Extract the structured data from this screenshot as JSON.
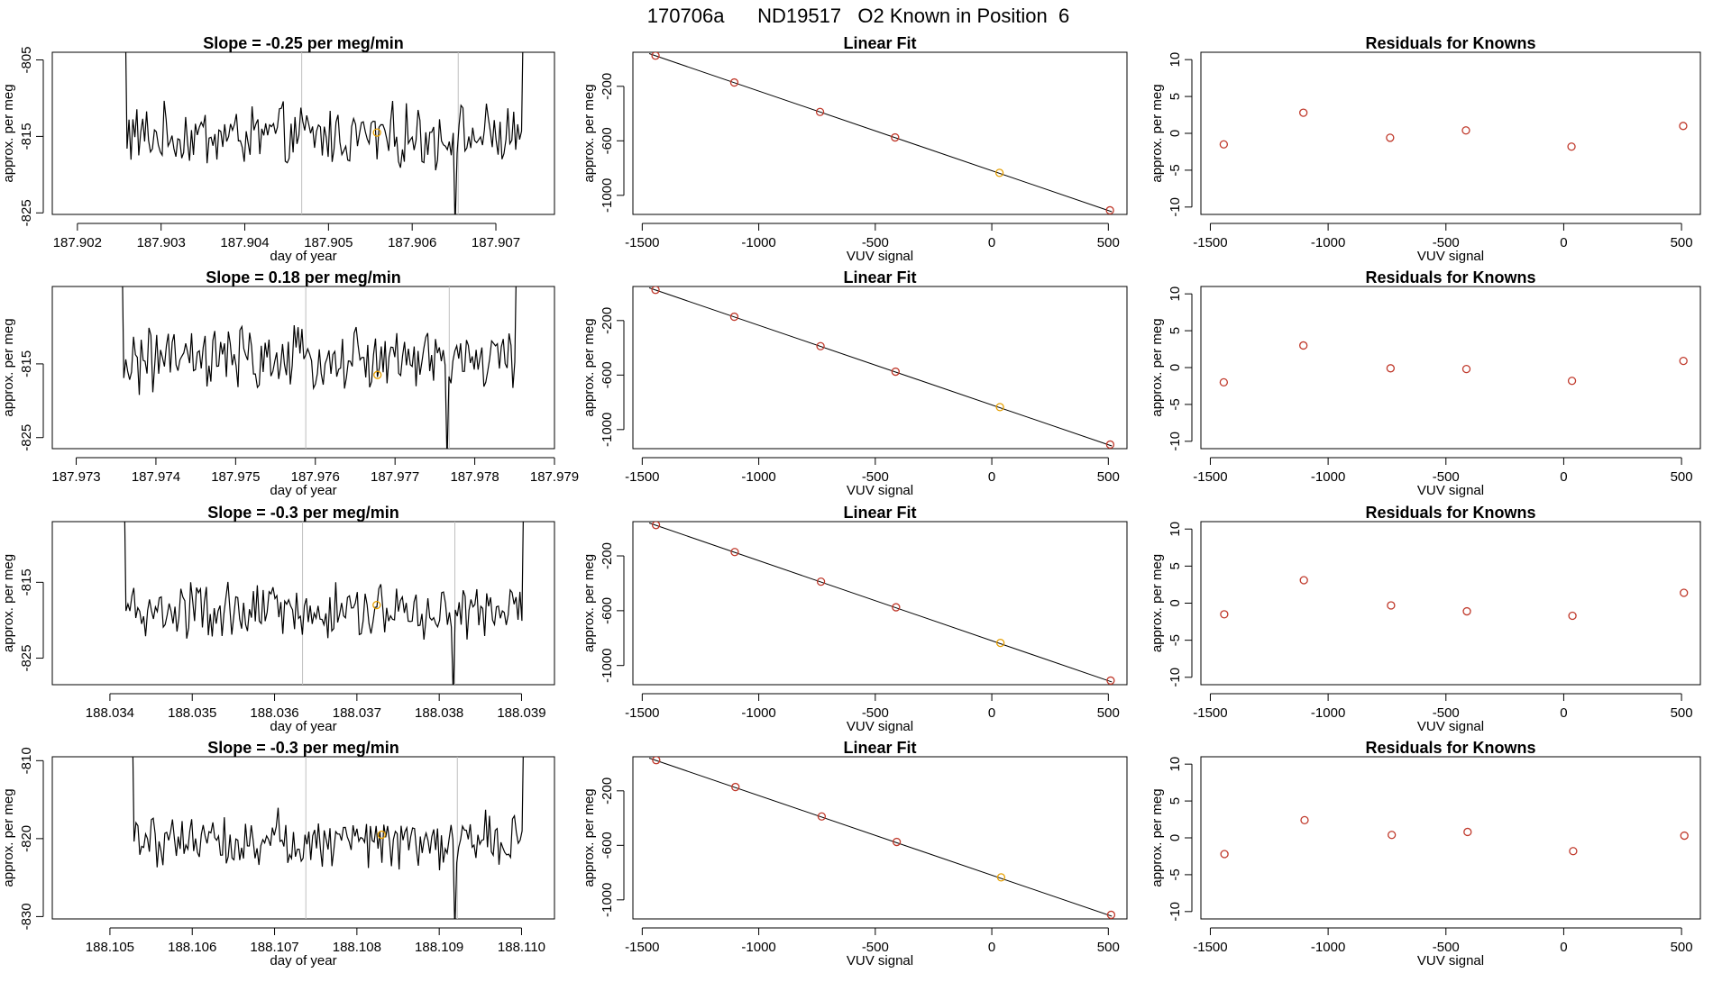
{
  "figure_title": "170706a      ND19517   O2 Known in Position  6",
  "colors": {
    "line": "#000000",
    "points": "#c0392b",
    "highlight": "#e69f00",
    "vlines": "#bfbfbf"
  },
  "chart_data": [
    {
      "type": "line",
      "row": 0,
      "col": 0,
      "title": "Slope =  -0.25  per meg/min",
      "xlabel": "day of year",
      "ylabel": "approx. per meg",
      "xlim": [
        187.9017,
        187.9077
      ],
      "ylim": [
        -825.2,
        -804.0
      ],
      "xticks": [
        187.902,
        187.903,
        187.904,
        187.905,
        187.906,
        187.907
      ],
      "xtick_labels": [
        "187.902",
        "187.903",
        "187.904",
        "187.905",
        "187.906",
        "187.907"
      ],
      "yticks": [
        -825,
        -815,
        -805
      ],
      "ytick_labels": [
        "-825",
        "-815",
        "-805"
      ],
      "series_range": [
        187.9025,
        187.9074
      ],
      "baseline": -815,
      "noise": 3.2,
      "vlines": [
        187.90468,
        187.90655
      ],
      "highlight_point": {
        "x": 187.90558,
        "y": -814.5
      }
    },
    {
      "type": "line",
      "row": 0,
      "col": 1,
      "title": "Linear Fit",
      "xlabel": "VUV signal",
      "ylabel": "approx. per meg",
      "xlim": [
        -1540,
        580
      ],
      "ylim": [
        -1140,
        50
      ],
      "xticks": [
        -1500,
        -1000,
        -500,
        0,
        500
      ],
      "xtick_labels": [
        "-1500",
        "-1000",
        "-500",
        "0",
        "500"
      ],
      "yticks": [
        -1000,
        -600,
        -200
      ],
      "ytick_labels": [
        "-1000",
        "-600",
        "-200"
      ],
      "line": [
        [
          -1470,
          40
        ],
        [
          515,
          -1120
        ]
      ],
      "points": [
        [
          -1443,
          25
        ],
        [
          -1105,
          -172
        ],
        [
          -737,
          -388
        ],
        [
          -415,
          -575
        ],
        [
          33,
          -835
        ],
        [
          507,
          -1110
        ]
      ],
      "highlight_index": 4
    },
    {
      "type": "scatter",
      "row": 0,
      "col": 2,
      "title": "Residuals for Knowns",
      "xlabel": "VUV signal",
      "ylabel": "approx. per meg",
      "xlim": [
        -1540,
        580
      ],
      "ylim": [
        -11,
        11
      ],
      "xticks": [
        -1500,
        -1000,
        -500,
        0,
        500
      ],
      "xtick_labels": [
        "-1500",
        "-1000",
        "-500",
        "0",
        "500"
      ],
      "yticks": [
        -10,
        -5,
        0,
        5,
        10
      ],
      "ytick_labels": [
        "-10",
        "-5",
        "0",
        "5",
        "10"
      ],
      "points": [
        [
          -1443,
          -1.5
        ],
        [
          -1105,
          2.8
        ],
        [
          -737,
          -0.6
        ],
        [
          -415,
          0.4
        ],
        [
          33,
          -1.8
        ],
        [
          507,
          1.0
        ]
      ]
    },
    {
      "type": "line",
      "row": 1,
      "col": 0,
      "title": "Slope =  0.18  per meg/min",
      "xlabel": "day of year",
      "ylabel": "approx. per meg",
      "xlim": [
        187.9727,
        187.979
      ],
      "ylim": [
        -826.5,
        -804.5
      ],
      "xticks": [
        187.973,
        187.974,
        187.975,
        187.976,
        187.977,
        187.978,
        187.979
      ],
      "xtick_labels": [
        "187.973",
        "187.974",
        "187.975",
        "187.976",
        "187.977",
        "187.978",
        "187.979"
      ],
      "yticks": [
        -825,
        -815
      ],
      "ytick_labels": [
        "-825",
        "-815"
      ],
      "series_range": [
        187.9735,
        187.9786
      ],
      "baseline": -814.5,
      "noise": 3.4,
      "vlines": [
        187.97588,
        187.97768
      ],
      "highlight_point": {
        "x": 187.97678,
        "y": -816.5
      }
    },
    {
      "type": "line",
      "row": 1,
      "col": 1,
      "title": "Linear Fit",
      "xlabel": "VUV signal",
      "ylabel": "approx. per meg",
      "xlim": [
        -1540,
        580
      ],
      "ylim": [
        -1140,
        50
      ],
      "xticks": [
        -1500,
        -1000,
        -500,
        0,
        500
      ],
      "xtick_labels": [
        "-1500",
        "-1000",
        "-500",
        "0",
        "500"
      ],
      "yticks": [
        -1000,
        -600,
        -200
      ],
      "ytick_labels": [
        "-1000",
        "-600",
        "-200"
      ],
      "line": [
        [
          -1470,
          40
        ],
        [
          515,
          -1120
        ]
      ],
      "points": [
        [
          -1443,
          25
        ],
        [
          -1105,
          -172
        ],
        [
          -735,
          -388
        ],
        [
          -413,
          -575
        ],
        [
          35,
          -835
        ],
        [
          508,
          -1110
        ]
      ],
      "highlight_index": 4
    },
    {
      "type": "scatter",
      "row": 1,
      "col": 2,
      "title": "Residuals for Knowns",
      "xlabel": "VUV signal",
      "ylabel": "approx. per meg",
      "xlim": [
        -1540,
        580
      ],
      "ylim": [
        -11,
        11
      ],
      "xticks": [
        -1500,
        -1000,
        -500,
        0,
        500
      ],
      "xtick_labels": [
        "-1500",
        "-1000",
        "-500",
        "0",
        "500"
      ],
      "yticks": [
        -10,
        -5,
        0,
        5,
        10
      ],
      "ytick_labels": [
        "-10",
        "-5",
        "0",
        "5",
        "10"
      ],
      "points": [
        [
          -1443,
          -2.0
        ],
        [
          -1105,
          3.0
        ],
        [
          -735,
          -0.1
        ],
        [
          -413,
          -0.2
        ],
        [
          35,
          -1.8
        ],
        [
          508,
          0.9
        ]
      ]
    },
    {
      "type": "line",
      "row": 2,
      "col": 0,
      "title": "Slope =  -0.3  per meg/min",
      "xlabel": "day of year",
      "ylabel": "approx. per meg",
      "xlim": [
        188.0333,
        188.0394
      ],
      "ylim": [
        -828.5,
        -807.0
      ],
      "xticks": [
        188.034,
        188.035,
        188.036,
        188.037,
        188.038,
        188.039
      ],
      "xtick_labels": [
        "188.034",
        "188.035",
        "188.036",
        "188.037",
        "188.038",
        "188.039"
      ],
      "yticks": [
        -825,
        -815
      ],
      "ytick_labels": [
        "-825",
        "-815"
      ],
      "series_range": [
        188.0341,
        188.0391
      ],
      "baseline": -819,
      "noise": 3.0,
      "vlines": [
        188.03634,
        188.03819
      ],
      "highlight_point": {
        "x": 188.03724,
        "y": -818.0
      }
    },
    {
      "type": "line",
      "row": 2,
      "col": 1,
      "title": "Linear Fit",
      "xlabel": "VUV signal",
      "ylabel": "approx. per meg",
      "xlim": [
        -1540,
        580
      ],
      "ylim": [
        -1140,
        50
      ],
      "xticks": [
        -1500,
        -1000,
        -500,
        0,
        500
      ],
      "xtick_labels": [
        "-1500",
        "-1000",
        "-500",
        "0",
        "500"
      ],
      "yticks": [
        -1000,
        -600,
        -200
      ],
      "ytick_labels": [
        "-1000",
        "-600",
        "-200"
      ],
      "line": [
        [
          -1470,
          40
        ],
        [
          515,
          -1120
        ]
      ],
      "points": [
        [
          -1441,
          25
        ],
        [
          -1103,
          -172
        ],
        [
          -733,
          -388
        ],
        [
          -411,
          -575
        ],
        [
          37,
          -835
        ],
        [
          510,
          -1110
        ]
      ],
      "highlight_index": 4
    },
    {
      "type": "scatter",
      "row": 2,
      "col": 2,
      "title": "Residuals for Knowns",
      "xlabel": "VUV signal",
      "ylabel": "approx. per meg",
      "xlim": [
        -1540,
        580
      ],
      "ylim": [
        -11,
        11
      ],
      "xticks": [
        -1500,
        -1000,
        -500,
        0,
        500
      ],
      "xtick_labels": [
        "-1500",
        "-1000",
        "-500",
        "0",
        "500"
      ],
      "yticks": [
        -10,
        -5,
        0,
        5,
        10
      ],
      "ytick_labels": [
        "-10",
        "-5",
        "0",
        "5",
        "10"
      ],
      "points": [
        [
          -1441,
          -1.5
        ],
        [
          -1103,
          3.1
        ],
        [
          -733,
          -0.3
        ],
        [
          -411,
          -1.1
        ],
        [
          37,
          -1.7
        ],
        [
          510,
          1.4
        ]
      ]
    },
    {
      "type": "line",
      "row": 3,
      "col": 0,
      "title": "Slope =  -0.3  per meg/min",
      "xlabel": "day of year",
      "ylabel": "approx. per meg",
      "xlim": [
        188.1043,
        188.1104
      ],
      "ylim": [
        -830.3,
        -809.5
      ],
      "xticks": [
        188.105,
        188.106,
        188.107,
        188.108,
        188.109,
        188.11
      ],
      "xtick_labels": [
        "188.105",
        "188.106",
        "188.107",
        "188.108",
        "188.109",
        "188.110"
      ],
      "yticks": [
        -830,
        -820,
        -810
      ],
      "ytick_labels": [
        "-830",
        "-820",
        "-810"
      ],
      "series_range": [
        188.1052,
        188.1101
      ],
      "baseline": -820,
      "noise": 2.8,
      "vlines": [
        188.10738,
        188.10922
      ],
      "highlight_point": {
        "x": 188.1083,
        "y": -819.5
      }
    },
    {
      "type": "line",
      "row": 3,
      "col": 1,
      "title": "Linear Fit",
      "xlabel": "VUV signal",
      "ylabel": "approx. per meg",
      "xlim": [
        -1540,
        580
      ],
      "ylim": [
        -1140,
        50
      ],
      "xticks": [
        -1500,
        -1000,
        -500,
        0,
        500
      ],
      "xtick_labels": [
        "-1500",
        "-1000",
        "-500",
        "0",
        "500"
      ],
      "yticks": [
        -1000,
        -600,
        -200
      ],
      "ytick_labels": [
        "-1000",
        "-600",
        "-200"
      ],
      "line": [
        [
          -1470,
          40
        ],
        [
          515,
          -1120
        ]
      ],
      "points": [
        [
          -1440,
          25
        ],
        [
          -1100,
          -172
        ],
        [
          -730,
          -388
        ],
        [
          -408,
          -575
        ],
        [
          40,
          -835
        ],
        [
          512,
          -1110
        ]
      ],
      "highlight_index": 4
    },
    {
      "type": "scatter",
      "row": 3,
      "col": 2,
      "title": "Residuals for Knowns",
      "xlabel": "VUV signal",
      "ylabel": "approx. per meg",
      "xlim": [
        -1540,
        580
      ],
      "ylim": [
        -11,
        11
      ],
      "xticks": [
        -1500,
        -1000,
        -500,
        0,
        500
      ],
      "xtick_labels": [
        "-1500",
        "-1000",
        "-500",
        "0",
        "500"
      ],
      "yticks": [
        -10,
        -5,
        0,
        5,
        10
      ],
      "ytick_labels": [
        "-10",
        "-5",
        "0",
        "5",
        "10"
      ],
      "points": [
        [
          -1440,
          -2.2
        ],
        [
          -1100,
          2.4
        ],
        [
          -730,
          0.4
        ],
        [
          -408,
          0.8
        ],
        [
          40,
          -1.8
        ],
        [
          512,
          0.3
        ]
      ]
    }
  ]
}
